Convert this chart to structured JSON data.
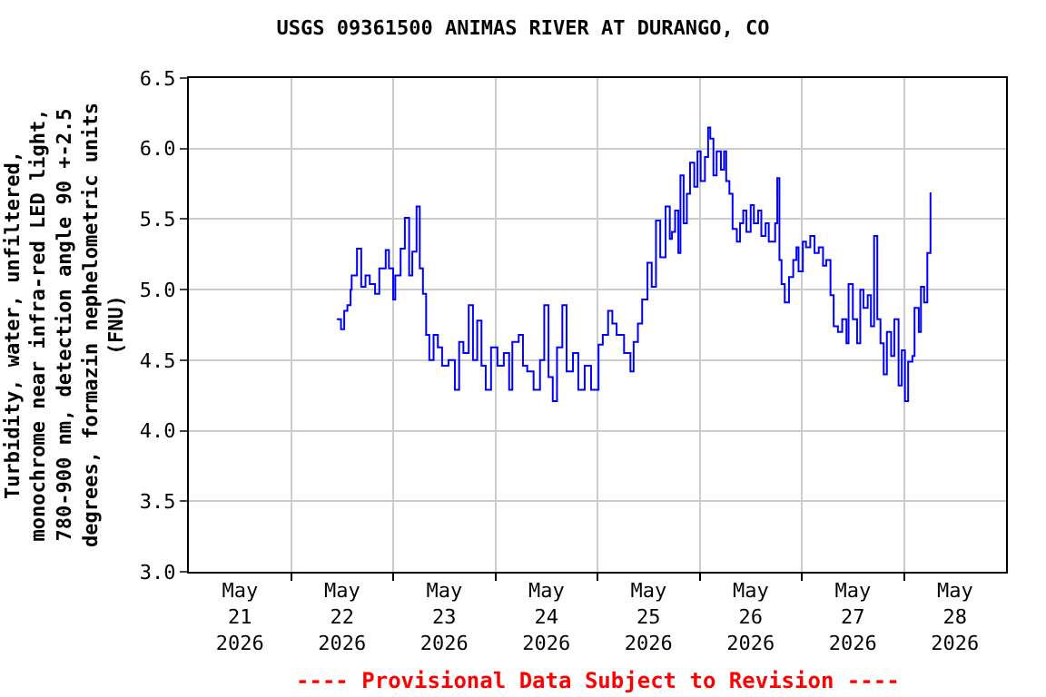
{
  "chart_data": {
    "type": "step",
    "title": "USGS 09361500 ANIMAS RIVER AT DURANGO, CO",
    "ylabel": "Turbidity, water, unfiltered,\nmonochrome near infra-red LED light,\n780-900 nm, detection angle 90 +-2.5\ndegrees, formazin nephelometric units\n(FNU)",
    "annotations": [
      "---- Provisional Data Subject to Revision ----"
    ],
    "x": [
      "2026-05-22T10:45",
      "2026-05-22T11:45",
      "2026-05-22T12:30",
      "2026-05-22T13:15",
      "2026-05-22T14:00",
      "2026-05-22T14:15",
      "2026-05-22T15:30",
      "2026-05-22T16:30",
      "2026-05-22T17:30",
      "2026-05-22T18:30",
      "2026-05-22T19:45",
      "2026-05-22T20:45",
      "2026-05-22T22:15",
      "2026-05-22T23:00",
      "2026-05-23T00:00",
      "2026-05-23T00:30",
      "2026-05-23T01:45",
      "2026-05-23T02:45",
      "2026-05-23T03:45",
      "2026-05-23T04:30",
      "2026-05-23T05:30",
      "2026-05-23T06:15",
      "2026-05-23T07:00",
      "2026-05-23T07:45",
      "2026-05-23T08:30",
      "2026-05-23T09:30",
      "2026-05-23T10:30",
      "2026-05-23T11:30",
      "2026-05-23T13:00",
      "2026-05-23T14:30",
      "2026-05-23T15:30",
      "2026-05-23T16:30",
      "2026-05-23T17:45",
      "2026-05-23T18:45",
      "2026-05-23T19:45",
      "2026-05-23T20:45",
      "2026-05-23T21:45",
      "2026-05-23T23:00",
      "2026-05-24T00:30",
      "2026-05-24T02:00",
      "2026-05-24T03:15",
      "2026-05-24T04:00",
      "2026-05-24T05:30",
      "2026-05-24T06:30",
      "2026-05-24T07:30",
      "2026-05-24T09:00",
      "2026-05-24T10:30",
      "2026-05-24T11:30",
      "2026-05-24T12:30",
      "2026-05-24T13:30",
      "2026-05-24T14:30",
      "2026-05-24T15:45",
      "2026-05-24T16:45",
      "2026-05-24T18:15",
      "2026-05-24T19:30",
      "2026-05-24T21:00",
      "2026-05-24T22:30",
      "2026-05-25T00:15",
      "2026-05-25T01:15",
      "2026-05-25T02:30",
      "2026-05-25T03:30",
      "2026-05-25T04:30",
      "2026-05-25T06:15",
      "2026-05-25T07:45",
      "2026-05-25T08:30",
      "2026-05-25T09:30",
      "2026-05-25T10:30",
      "2026-05-25T11:45",
      "2026-05-25T12:45",
      "2026-05-25T13:45",
      "2026-05-25T14:45",
      "2026-05-25T16:00",
      "2026-05-25T17:00",
      "2026-05-25T17:30",
      "2026-05-25T18:15",
      "2026-05-25T19:00",
      "2026-05-25T19:30",
      "2026-05-25T20:15",
      "2026-05-25T21:00",
      "2026-05-25T21:45",
      "2026-05-25T22:45",
      "2026-05-25T23:30",
      "2026-05-26T00:15",
      "2026-05-26T01:15",
      "2026-05-26T02:00",
      "2026-05-26T02:30",
      "2026-05-26T03:15",
      "2026-05-26T04:00",
      "2026-05-26T05:00",
      "2026-05-26T05:45",
      "2026-05-26T06:15",
      "2026-05-26T07:00",
      "2026-05-26T07:45",
      "2026-05-26T08:45",
      "2026-05-26T09:30",
      "2026-05-26T10:15",
      "2026-05-26T11:00",
      "2026-05-26T12:00",
      "2026-05-26T12:45",
      "2026-05-26T13:45",
      "2026-05-26T14:30",
      "2026-05-26T15:30",
      "2026-05-26T16:15",
      "2026-05-26T17:00",
      "2026-05-26T17:45",
      "2026-05-26T18:15",
      "2026-05-26T18:45",
      "2026-05-26T19:15",
      "2026-05-26T20:00",
      "2026-05-26T21:00",
      "2026-05-26T22:00",
      "2026-05-26T22:45",
      "2026-05-26T23:15",
      "2026-05-27T00:15",
      "2026-05-27T01:00",
      "2026-05-27T02:00",
      "2026-05-27T03:00",
      "2026-05-27T04:00",
      "2026-05-27T05:00",
      "2026-05-27T05:45",
      "2026-05-27T06:45",
      "2026-05-27T07:30",
      "2026-05-27T08:30",
      "2026-05-27T09:30",
      "2026-05-27T10:30",
      "2026-05-27T11:00",
      "2026-05-27T12:00",
      "2026-05-27T13:00",
      "2026-05-27T13:45",
      "2026-05-27T14:30",
      "2026-05-27T15:30",
      "2026-05-27T16:15",
      "2026-05-27T17:00",
      "2026-05-27T17:45",
      "2026-05-27T18:30",
      "2026-05-27T19:15",
      "2026-05-27T20:00",
      "2026-05-27T21:00",
      "2026-05-27T21:45",
      "2026-05-27T22:45",
      "2026-05-27T23:30",
      "2026-05-28T00:15",
      "2026-05-28T01:00",
      "2026-05-28T02:00",
      "2026-05-28T02:30",
      "2026-05-28T03:30",
      "2026-05-28T04:00",
      "2026-05-28T04:45",
      "2026-05-28T05:30",
      "2026-05-28T06:15"
    ],
    "series": [
      {
        "color": "#0000ff",
        "values": [
          4.79,
          4.72,
          4.85,
          4.89,
          5.0,
          5.1,
          5.29,
          5.02,
          5.1,
          5.04,
          4.97,
          5.15,
          5.28,
          5.15,
          4.93,
          5.1,
          5.29,
          5.51,
          5.1,
          5.27,
          5.59,
          5.15,
          4.97,
          4.68,
          4.5,
          4.68,
          4.59,
          4.46,
          4.5,
          4.29,
          4.63,
          4.55,
          4.89,
          4.5,
          4.78,
          4.46,
          4.29,
          4.59,
          4.46,
          4.55,
          4.29,
          4.63,
          4.68,
          4.46,
          4.42,
          4.29,
          4.5,
          4.89,
          4.38,
          4.21,
          4.59,
          4.89,
          4.42,
          4.55,
          4.29,
          4.46,
          4.29,
          4.61,
          4.68,
          4.85,
          4.76,
          4.68,
          4.55,
          4.42,
          4.63,
          4.76,
          4.93,
          5.19,
          5.02,
          5.49,
          5.23,
          5.59,
          5.36,
          5.41,
          5.56,
          5.26,
          5.81,
          5.47,
          5.68,
          5.9,
          5.73,
          5.98,
          5.77,
          5.94,
          6.15,
          6.07,
          5.81,
          5.98,
          5.85,
          5.98,
          5.77,
          5.68,
          5.43,
          5.34,
          5.47,
          5.56,
          5.41,
          5.6,
          5.47,
          5.56,
          5.38,
          5.47,
          5.34,
          5.34,
          5.47,
          5.79,
          5.21,
          5.04,
          4.91,
          5.09,
          5.21,
          5.3,
          5.13,
          5.34,
          5.3,
          5.38,
          5.26,
          5.3,
          5.17,
          5.21,
          4.96,
          4.74,
          4.7,
          4.79,
          4.62,
          5.04,
          4.79,
          4.62,
          5.0,
          4.87,
          4.96,
          4.74,
          5.38,
          4.79,
          4.62,
          4.4,
          4.7,
          4.53,
          4.79,
          4.32,
          4.57,
          4.21,
          4.49,
          4.53,
          4.87,
          4.7,
          5.02,
          4.91,
          5.26,
          5.69
        ]
      }
    ],
    "xlim": [
      "2026-05-21",
      "2026-05-29"
    ],
    "xticks": [
      {
        "value": "2026-05-21T12:00",
        "label": "May\n21\n2026"
      },
      {
        "value": "2026-05-22T12:00",
        "label": "May\n22\n2026"
      },
      {
        "value": "2026-05-23T12:00",
        "label": "May\n23\n2026"
      },
      {
        "value": "2026-05-24T12:00",
        "label": "May\n24\n2026"
      },
      {
        "value": "2026-05-25T12:00",
        "label": "May\n25\n2026"
      },
      {
        "value": "2026-05-26T12:00",
        "label": "May\n26\n2026"
      },
      {
        "value": "2026-05-27T12:00",
        "label": "May\n27\n2026"
      },
      {
        "value": "2026-05-28T12:00",
        "label": "May\n28\n2026"
      },
      {
        "value": "2026-05-22",
        "label": null
      },
      {
        "value": "2026-05-23",
        "label": null
      },
      {
        "value": "2026-05-24",
        "label": null
      },
      {
        "value": "2026-05-25",
        "label": null
      },
      {
        "value": "2026-05-26",
        "label": null
      },
      {
        "value": "2026-05-27",
        "label": null
      },
      {
        "value": "2026-05-28",
        "label": null
      }
    ],
    "ylim": [
      3.0,
      6.5
    ],
    "yticks": [
      {
        "value": 3.0,
        "label": "3.0"
      },
      {
        "value": 3.5,
        "label": "3.5"
      },
      {
        "value": 4.0,
        "label": "4.0"
      },
      {
        "value": 4.5,
        "label": "4.5"
      },
      {
        "value": 5.0,
        "label": "5.0"
      },
      {
        "value": 5.5,
        "label": "5.5"
      },
      {
        "value": 6.0,
        "label": "6.0"
      },
      {
        "value": 6.5,
        "label": "6.5"
      }
    ],
    "grid": true
  }
}
